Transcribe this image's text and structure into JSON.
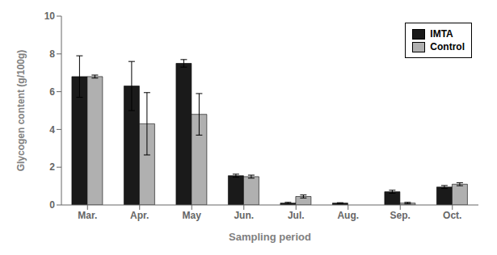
{
  "chart_data": {
    "type": "bar",
    "categories": [
      "Mar.",
      "Apr.",
      "May",
      "Jun.",
      "Jul.",
      "Aug.",
      "Sep.",
      "Oct."
    ],
    "series": [
      {
        "name": "IMTA",
        "color": "#1a1a1a",
        "values": [
          6.8,
          6.3,
          7.5,
          1.55,
          0.1,
          0.1,
          0.7,
          0.95
        ],
        "errors": [
          1.1,
          1.3,
          0.2,
          0.08,
          0.04,
          0.02,
          0.08,
          0.08
        ]
      },
      {
        "name": "Control",
        "color": "#b0b0b0",
        "values": [
          6.8,
          4.3,
          4.8,
          1.5,
          0.45,
          0.0,
          0.1,
          1.1
        ],
        "errors": [
          0.08,
          1.65,
          1.1,
          0.08,
          0.08,
          0.0,
          0.04,
          0.08
        ]
      }
    ],
    "xlabel": "Sampling period",
    "ylabel": "Glycogen content (g/100g)",
    "ylim": [
      0,
      10
    ],
    "yticks": [
      0,
      2,
      4,
      6,
      8,
      10
    ],
    "legend": "upper right",
    "grid": false
  }
}
